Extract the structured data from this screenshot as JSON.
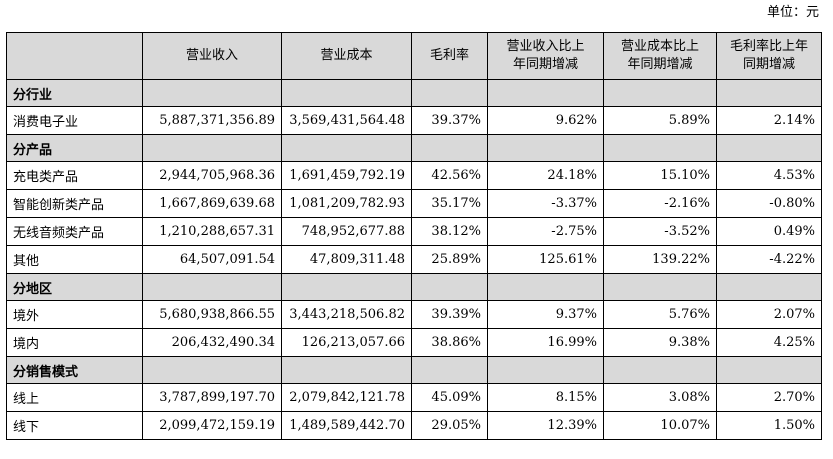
{
  "unit_note": "单位：元",
  "table": {
    "headers": {
      "revenue": "营业收入",
      "cost": "营业成本",
      "margin": "毛利率",
      "revenue_yoy_line1": "营业收入比上",
      "revenue_yoy_line2": "年同期增减",
      "cost_yoy_line1": "营业成本比上",
      "cost_yoy_line2": "年同期增减",
      "margin_yoy_line1": "毛利率比上年",
      "margin_yoy_line2": "同期增减"
    },
    "sections": [
      {
        "title": "分行业",
        "rows": [
          {
            "label": "消费电子业",
            "revenue": "5,887,371,356.89",
            "cost": "3,569,431,564.48",
            "margin": "39.37%",
            "revenue_yoy": "9.62%",
            "cost_yoy": "5.89%",
            "margin_yoy": "2.14%"
          }
        ]
      },
      {
        "title": "分产品",
        "rows": [
          {
            "label": "充电类产品",
            "revenue": "2,944,705,968.36",
            "cost": "1,691,459,792.19",
            "margin": "42.56%",
            "revenue_yoy": "24.18%",
            "cost_yoy": "15.10%",
            "margin_yoy": "4.53%"
          },
          {
            "label": "智能创新类产品",
            "revenue": "1,667,869,639.68",
            "cost": "1,081,209,782.93",
            "margin": "35.17%",
            "revenue_yoy": "-3.37%",
            "cost_yoy": "-2.16%",
            "margin_yoy": "-0.80%"
          },
          {
            "label": "无线音频类产品",
            "revenue": "1,210,288,657.31",
            "cost": "748,952,677.88",
            "margin": "38.12%",
            "revenue_yoy": "-2.75%",
            "cost_yoy": "-3.52%",
            "margin_yoy": "0.49%"
          },
          {
            "label": "其他",
            "revenue": "64,507,091.54",
            "cost": "47,809,311.48",
            "margin": "25.89%",
            "revenue_yoy": "125.61%",
            "cost_yoy": "139.22%",
            "margin_yoy": "-4.22%"
          }
        ]
      },
      {
        "title": "分地区",
        "rows": [
          {
            "label": "境外",
            "revenue": "5,680,938,866.55",
            "cost": "3,443,218,506.82",
            "margin": "39.39%",
            "revenue_yoy": "9.37%",
            "cost_yoy": "5.76%",
            "margin_yoy": "2.07%"
          },
          {
            "label": "境内",
            "revenue": "206,432,490.34",
            "cost": "126,213,057.66",
            "margin": "38.86%",
            "revenue_yoy": "16.99%",
            "cost_yoy": "9.38%",
            "margin_yoy": "4.25%"
          }
        ]
      },
      {
        "title": "分销售模式",
        "rows": [
          {
            "label": "线上",
            "revenue": "3,787,899,197.70",
            "cost": "2,079,842,121.78",
            "margin": "45.09%",
            "revenue_yoy": "8.15%",
            "cost_yoy": "3.08%",
            "margin_yoy": "2.70%"
          },
          {
            "label": "线下",
            "revenue": "2,099,472,159.19",
            "cost": "1,489,589,442.70",
            "margin": "29.05%",
            "revenue_yoy": "12.39%",
            "cost_yoy": "10.07%",
            "margin_yoy": "1.50%"
          }
        ]
      }
    ]
  }
}
